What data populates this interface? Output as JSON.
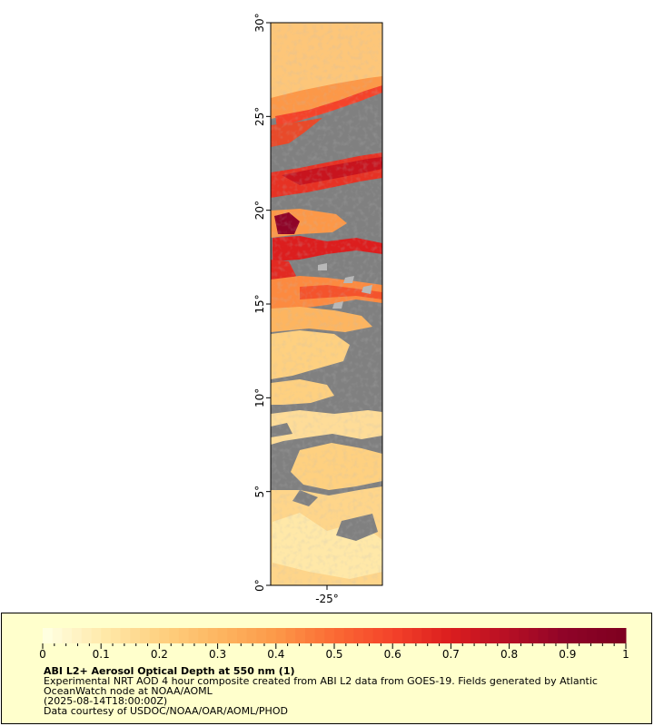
{
  "map": {
    "y_axis": {
      "labels": [
        "30°",
        "25°",
        "20°",
        "15°",
        "10°",
        "5°",
        "0°"
      ],
      "values": [
        30,
        25,
        20,
        15,
        10,
        5,
        0
      ]
    },
    "x_axis": {
      "labels": [
        "-25°"
      ],
      "values": [
        -25
      ]
    },
    "lat_range": [
      0,
      30
    ],
    "layer": "aerosol-optical-depth-raster",
    "colors": {
      "missing": "#808080",
      "frame": "#000000",
      "legend_background": "#ffffcc"
    }
  },
  "legend": {
    "ticks": [
      "0",
      "0.1",
      "0.2",
      "0.3",
      "0.4",
      "0.5",
      "0.6",
      "0.7",
      "0.8",
      "0.9",
      "1"
    ],
    "range": [
      0,
      1
    ],
    "colormap": [
      "#ffffe0",
      "#ffe8a8",
      "#fed080",
      "#fdb560",
      "#fc9848",
      "#fb6a34",
      "#f4432a",
      "#dc1e1e",
      "#b80f24",
      "#8f0428",
      "#7f0020"
    ],
    "title": "ABI L2+ Aerosol Optical Depth at 550 nm (1)",
    "description": "Experimental NRT AOD 4 hour composite created from ABI L2 data from GOES-19. Fields generated by Atlantic OceanWatch node at NOAA/AOML",
    "date": "(2025-08-14T18:00:00Z)",
    "credit": "Data courtesy of USDOC/NOAA/OAR/AOML/PHOD"
  }
}
